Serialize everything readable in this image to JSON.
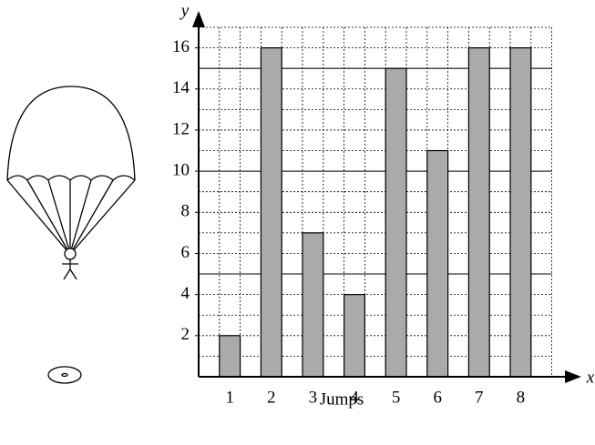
{
  "chart_data": {
    "type": "bar",
    "x_label": "x",
    "y_label": "y",
    "xlabel": "Jumps",
    "categories": [
      "1",
      "2",
      "3",
      "4",
      "5",
      "6",
      "7",
      "8"
    ],
    "values": [
      2,
      16,
      7,
      4,
      15,
      11,
      16,
      16
    ],
    "color": "#aaaaaa",
    "ylim": [
      0,
      17
    ],
    "yticks": [
      2,
      4,
      6,
      8,
      10,
      12,
      14,
      16
    ],
    "grid": true,
    "solid_grid": [
      5,
      10,
      15
    ]
  }
}
